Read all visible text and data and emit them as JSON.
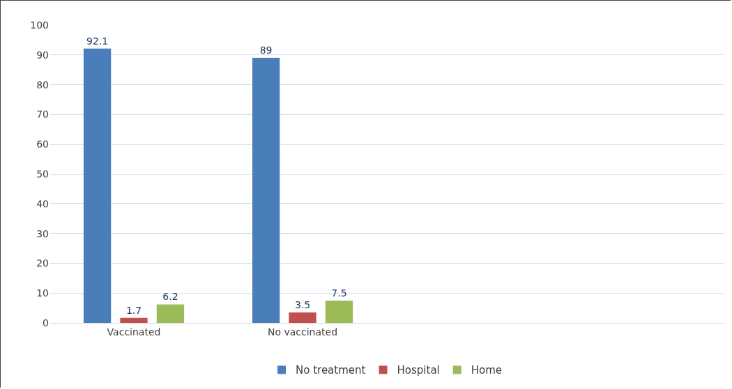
{
  "chart_data": {
    "type": "bar",
    "categories": [
      "Vaccinated",
      "No vaccinated",
      null,
      null
    ],
    "series": [
      {
        "name": "No treatment",
        "color": "#4a7ebb",
        "values": [
          92.1,
          89,
          null,
          null
        ]
      },
      {
        "name": "Hospital",
        "color": "#c0504d",
        "values": [
          1.7,
          3.5,
          null,
          null
        ]
      },
      {
        "name": "Home",
        "color": "#9bbb59",
        "values": [
          6.2,
          7.5,
          null,
          null
        ]
      }
    ],
    "ylim": [
      0,
      100
    ],
    "yticks": [
      0,
      10,
      20,
      30,
      40,
      50,
      60,
      70,
      80,
      90,
      100
    ],
    "grid": "y",
    "legend": "bottom",
    "data_labels": true
  }
}
